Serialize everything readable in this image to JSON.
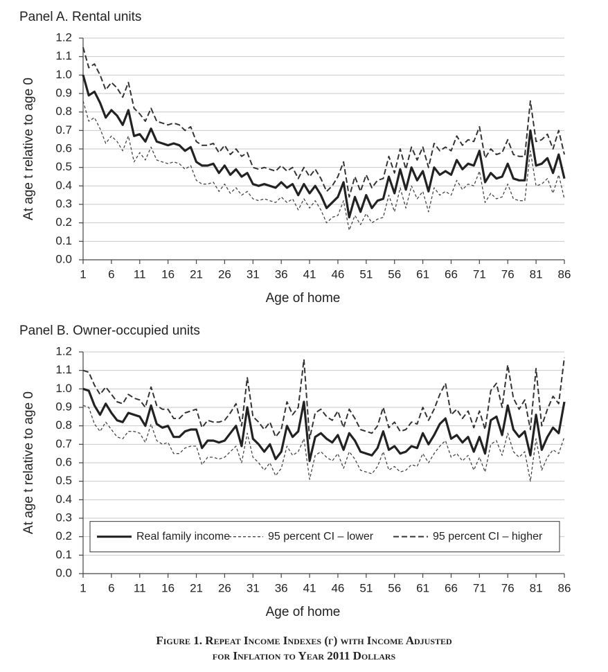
{
  "chart_data": [
    {
      "type": "line",
      "title": "Panel A. Rental units",
      "xlabel": "Age of home",
      "ylabel": "At age t relative to age 0",
      "x": [
        1,
        2,
        3,
        4,
        5,
        6,
        7,
        8,
        9,
        10,
        11,
        12,
        13,
        14,
        15,
        16,
        17,
        18,
        19,
        20,
        21,
        22,
        23,
        24,
        25,
        26,
        27,
        28,
        29,
        30,
        31,
        32,
        33,
        34,
        35,
        36,
        37,
        38,
        39,
        40,
        41,
        42,
        43,
        44,
        45,
        46,
        47,
        48,
        49,
        50,
        51,
        52,
        53,
        54,
        55,
        56,
        57,
        58,
        59,
        60,
        61,
        62,
        63,
        64,
        65,
        66,
        67,
        68,
        69,
        70,
        71,
        72,
        73,
        74,
        75,
        76,
        77,
        78,
        79,
        80,
        81,
        82,
        83,
        84,
        85,
        86
      ],
      "xlim": [
        1,
        86
      ],
      "xticks": [
        1,
        6,
        11,
        16,
        21,
        26,
        31,
        36,
        41,
        46,
        51,
        56,
        61,
        66,
        71,
        76,
        81,
        86
      ],
      "ylim": [
        0,
        1.2
      ],
      "yticks": [
        {
          "value": 0,
          "label": "0.0"
        },
        0.1,
        0.2,
        0.3,
        0.4,
        0.5,
        0.6,
        0.7,
        0.8,
        0.9,
        {
          "value": 1,
          "label": "1.0"
        },
        1.1,
        1.2
      ],
      "grid": true,
      "series": [
        {
          "color": "#222222",
          "line_style": "solid",
          "values": [
            1.0,
            0.89,
            0.91,
            0.85,
            0.77,
            0.81,
            0.78,
            0.73,
            0.81,
            0.67,
            0.68,
            0.64,
            0.71,
            0.64,
            0.63,
            0.62,
            0.63,
            0.62,
            0.59,
            0.61,
            0.53,
            0.51,
            0.51,
            0.52,
            0.47,
            0.51,
            0.46,
            0.49,
            0.45,
            0.47,
            0.41,
            0.4,
            0.41,
            0.4,
            0.39,
            0.42,
            0.39,
            0.41,
            0.35,
            0.41,
            0.36,
            0.4,
            0.35,
            0.28,
            0.31,
            0.34,
            0.42,
            0.23,
            0.34,
            0.26,
            0.35,
            0.28,
            0.32,
            0.33,
            0.45,
            0.36,
            0.49,
            0.38,
            0.5,
            0.43,
            0.48,
            0.37,
            0.5,
            0.46,
            0.48,
            0.46,
            0.54,
            0.49,
            0.52,
            0.51,
            0.59,
            0.42,
            0.47,
            0.44,
            0.45,
            0.52,
            0.44,
            0.43,
            0.43,
            0.7,
            0.51,
            0.52,
            0.55,
            0.47,
            0.57,
            0.44
          ]
        },
        {
          "color": "#444444",
          "line_style": "short",
          "values": [
            0.86,
            0.75,
            0.77,
            0.71,
            0.63,
            0.67,
            0.64,
            0.59,
            0.67,
            0.53,
            0.58,
            0.54,
            0.61,
            0.54,
            0.53,
            0.52,
            0.53,
            0.52,
            0.49,
            0.51,
            0.43,
            0.41,
            0.41,
            0.42,
            0.37,
            0.41,
            0.36,
            0.39,
            0.35,
            0.37,
            0.33,
            0.32,
            0.33,
            0.32,
            0.31,
            0.34,
            0.31,
            0.33,
            0.27,
            0.33,
            0.28,
            0.32,
            0.27,
            0.2,
            0.23,
            0.24,
            0.32,
            0.16,
            0.24,
            0.19,
            0.25,
            0.2,
            0.22,
            0.23,
            0.35,
            0.26,
            0.39,
            0.28,
            0.4,
            0.33,
            0.37,
            0.26,
            0.39,
            0.35,
            0.37,
            0.35,
            0.43,
            0.38,
            0.41,
            0.4,
            0.48,
            0.31,
            0.36,
            0.33,
            0.34,
            0.41,
            0.33,
            0.32,
            0.32,
            0.59,
            0.4,
            0.41,
            0.44,
            0.36,
            0.46,
            0.33
          ]
        },
        {
          "color": "#333333",
          "line_style": "long",
          "values": [
            1.15,
            1.04,
            1.06,
            1.0,
            0.92,
            0.96,
            0.93,
            0.88,
            0.96,
            0.82,
            0.79,
            0.75,
            0.82,
            0.75,
            0.74,
            0.73,
            0.74,
            0.73,
            0.7,
            0.72,
            0.64,
            0.62,
            0.62,
            0.63,
            0.58,
            0.62,
            0.57,
            0.6,
            0.56,
            0.58,
            0.5,
            0.49,
            0.5,
            0.49,
            0.48,
            0.51,
            0.48,
            0.5,
            0.44,
            0.5,
            0.45,
            0.49,
            0.44,
            0.37,
            0.4,
            0.45,
            0.53,
            0.34,
            0.45,
            0.37,
            0.46,
            0.39,
            0.43,
            0.44,
            0.56,
            0.47,
            0.6,
            0.49,
            0.61,
            0.54,
            0.61,
            0.5,
            0.63,
            0.59,
            0.61,
            0.59,
            0.67,
            0.62,
            0.65,
            0.64,
            0.72,
            0.55,
            0.6,
            0.57,
            0.58,
            0.65,
            0.57,
            0.56,
            0.56,
            0.86,
            0.64,
            0.65,
            0.68,
            0.6,
            0.7,
            0.57
          ]
        }
      ]
    },
    {
      "type": "line",
      "title": "Panel B. Owner-occupied units",
      "xlabel": "Age of home",
      "ylabel": "At age t relative to age 0",
      "x": [
        1,
        2,
        3,
        4,
        5,
        6,
        7,
        8,
        9,
        10,
        11,
        12,
        13,
        14,
        15,
        16,
        17,
        18,
        19,
        20,
        21,
        22,
        23,
        24,
        25,
        26,
        27,
        28,
        29,
        30,
        31,
        32,
        33,
        34,
        35,
        36,
        37,
        38,
        39,
        40,
        41,
        42,
        43,
        44,
        45,
        46,
        47,
        48,
        49,
        50,
        51,
        52,
        53,
        54,
        55,
        56,
        57,
        58,
        59,
        60,
        61,
        62,
        63,
        64,
        65,
        66,
        67,
        68,
        69,
        70,
        71,
        72,
        73,
        74,
        75,
        76,
        77,
        78,
        79,
        80,
        81,
        82,
        83,
        84,
        85,
        86
      ],
      "xlim": [
        1,
        86
      ],
      "xticks": [
        1,
        6,
        11,
        16,
        21,
        26,
        31,
        36,
        41,
        46,
        51,
        56,
        61,
        66,
        71,
        76,
        81,
        86
      ],
      "ylim": [
        0,
        1.2
      ],
      "yticks": [
        {
          "value": 0,
          "label": "0.0"
        },
        0.1,
        0.2,
        0.3,
        0.4,
        0.5,
        0.6,
        0.7,
        0.8,
        0.9,
        {
          "value": 1,
          "label": "1.0"
        },
        1.1,
        1.2
      ],
      "grid": true,
      "legend": "lower center",
      "series": [
        {
          "name": "Real family income",
          "color": "#222222",
          "line_style": "solid",
          "values": [
            1.0,
            0.99,
            0.91,
            0.86,
            0.92,
            0.87,
            0.83,
            0.82,
            0.87,
            0.86,
            0.85,
            0.8,
            0.91,
            0.81,
            0.79,
            0.8,
            0.74,
            0.74,
            0.77,
            0.78,
            0.78,
            0.68,
            0.72,
            0.72,
            0.71,
            0.72,
            0.76,
            0.8,
            0.69,
            0.9,
            0.73,
            0.7,
            0.66,
            0.7,
            0.62,
            0.66,
            0.8,
            0.74,
            0.77,
            0.93,
            0.61,
            0.74,
            0.76,
            0.73,
            0.71,
            0.75,
            0.67,
            0.76,
            0.72,
            0.66,
            0.65,
            0.64,
            0.68,
            0.77,
            0.67,
            0.69,
            0.65,
            0.66,
            0.69,
            0.68,
            0.76,
            0.7,
            0.75,
            0.81,
            0.84,
            0.73,
            0.75,
            0.71,
            0.74,
            0.66,
            0.74,
            0.65,
            0.83,
            0.85,
            0.75,
            0.91,
            0.78,
            0.74,
            0.77,
            0.64,
            0.86,
            0.67,
            0.74,
            0.79,
            0.76,
            0.93
          ]
        },
        {
          "name": "95 percent CI – lower",
          "color": "#444444",
          "line_style": "short",
          "values": [
            0.91,
            0.9,
            0.81,
            0.77,
            0.82,
            0.78,
            0.74,
            0.73,
            0.77,
            0.77,
            0.76,
            0.71,
            0.81,
            0.72,
            0.7,
            0.71,
            0.65,
            0.65,
            0.68,
            0.69,
            0.69,
            0.59,
            0.63,
            0.63,
            0.62,
            0.63,
            0.66,
            0.69,
            0.6,
            0.76,
            0.63,
            0.6,
            0.56,
            0.6,
            0.53,
            0.57,
            0.69,
            0.64,
            0.66,
            0.73,
            0.51,
            0.64,
            0.66,
            0.63,
            0.61,
            0.65,
            0.57,
            0.66,
            0.62,
            0.56,
            0.55,
            0.54,
            0.58,
            0.66,
            0.56,
            0.58,
            0.55,
            0.56,
            0.59,
            0.58,
            0.65,
            0.6,
            0.65,
            0.69,
            0.72,
            0.63,
            0.65,
            0.61,
            0.64,
            0.56,
            0.63,
            0.55,
            0.7,
            0.72,
            0.64,
            0.76,
            0.66,
            0.63,
            0.66,
            0.5,
            0.73,
            0.56,
            0.63,
            0.67,
            0.65,
            0.74
          ]
        },
        {
          "name": "95 percent CI – higher",
          "color": "#333333",
          "line_style": "long",
          "values": [
            1.1,
            1.09,
            1.02,
            0.97,
            1.01,
            0.97,
            0.93,
            0.92,
            0.97,
            0.95,
            0.94,
            0.9,
            1.01,
            0.91,
            0.89,
            0.89,
            0.84,
            0.84,
            0.87,
            0.88,
            0.89,
            0.79,
            0.83,
            0.82,
            0.82,
            0.83,
            0.87,
            0.92,
            0.8,
            1.06,
            0.85,
            0.82,
            0.78,
            0.82,
            0.74,
            0.78,
            0.93,
            0.86,
            0.9,
            1.16,
            0.73,
            0.87,
            0.89,
            0.85,
            0.83,
            0.88,
            0.79,
            0.89,
            0.84,
            0.78,
            0.77,
            0.76,
            0.8,
            0.9,
            0.79,
            0.82,
            0.77,
            0.78,
            0.82,
            0.81,
            0.9,
            0.83,
            0.89,
            0.97,
            1.03,
            0.86,
            0.89,
            0.84,
            0.88,
            0.79,
            0.88,
            0.78,
            0.99,
            1.03,
            0.9,
            1.13,
            0.95,
            0.89,
            0.94,
            0.78,
            1.11,
            0.8,
            0.89,
            0.96,
            0.92,
            1.17
          ]
        }
      ]
    }
  ],
  "caption": [
    "Figure 1. Repeat Income Indexes (γ) with Income Adjusted",
    "for Inflation to Year 2011 Dollars"
  ]
}
